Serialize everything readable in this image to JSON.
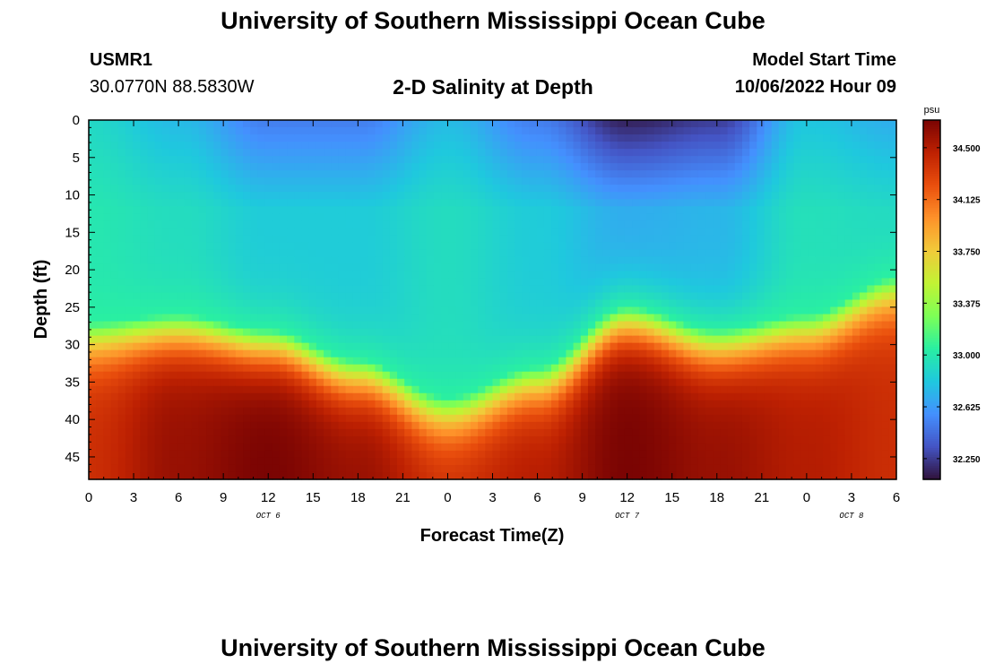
{
  "header": {
    "title": "University of Southern Mississippi Ocean Cube",
    "station": "USMR1",
    "coordinates": "30.0770N  88.5830W",
    "subtitle": "2-D Salinity at Depth",
    "start_label": "Model Start Time",
    "start_value": "10/06/2022 Hour 09"
  },
  "footer": {
    "title": "University of Southern Mississippi Ocean Cube"
  },
  "chart_data": {
    "type": "heatmap",
    "title": "2-D Salinity at Depth",
    "xlabel": "Forecast Time(Z)",
    "ylabel": "Depth (ft)",
    "x_tick_labels": [
      "0",
      "3",
      "6",
      "9",
      "12",
      "15",
      "18",
      "21",
      "0",
      "3",
      "6",
      "9",
      "12",
      "15",
      "18",
      "21",
      "0",
      "3",
      "6"
    ],
    "x_range_hours": [
      0,
      54
    ],
    "date_labels": [
      {
        "text": "OCT 6",
        "hour": 12
      },
      {
        "text": "OCT 7",
        "hour": 36
      },
      {
        "text": "OCT 8",
        "hour": 51
      }
    ],
    "y_ticks": [
      0,
      5,
      10,
      15,
      20,
      25,
      30,
      35,
      40,
      45
    ],
    "y_range": [
      0,
      48
    ],
    "y_inverted": true,
    "colorbar": {
      "unit": "psu",
      "ticks": [
        "34.500",
        "34.125",
        "33.750",
        "33.375",
        "33.000",
        "32.625",
        "32.250"
      ],
      "range": [
        32.1,
        34.7
      ],
      "colormap": "turbo"
    },
    "color_scale": {
      "low": 32.1,
      "high": 34.7,
      "stops": [
        "#30123b",
        "#4454c4",
        "#4490fe",
        "#1fc8de",
        "#29efa2",
        "#7dff56",
        "#c1f334",
        "#f1ca3a",
        "#fe922a",
        "#ea4f0d",
        "#be2102",
        "#7a0403"
      ]
    },
    "field_description": "Salinity field in psu by forecast hour (0-54) and depth (0-48 ft)",
    "field_samples": [
      {
        "hour": 0,
        "surface": 32.9,
        "halocline_depth_ft": 27,
        "bottom": 34.4
      },
      {
        "hour": 6,
        "surface": 32.75,
        "halocline_depth_ft": 26,
        "bottom": 34.6
      },
      {
        "hour": 12,
        "surface": 32.5,
        "halocline_depth_ft": 28,
        "bottom": 34.7
      },
      {
        "hour": 18,
        "surface": 32.5,
        "halocline_depth_ft": 32,
        "bottom": 34.6
      },
      {
        "hour": 24,
        "surface": 32.75,
        "halocline_depth_ft": 37,
        "bottom": 34.4
      },
      {
        "hour": 30,
        "surface": 32.5,
        "halocline_depth_ft": 33,
        "bottom": 34.5
      },
      {
        "hour": 36,
        "surface": 32.15,
        "halocline_depth_ft": 25,
        "bottom": 34.7
      },
      {
        "hour": 42,
        "surface": 32.25,
        "halocline_depth_ft": 28,
        "bottom": 34.6
      },
      {
        "hour": 48,
        "surface": 32.8,
        "halocline_depth_ft": 26,
        "bottom": 34.5
      },
      {
        "hour": 54,
        "surface": 32.7,
        "halocline_depth_ft": 21,
        "bottom": 34.4
      }
    ]
  }
}
